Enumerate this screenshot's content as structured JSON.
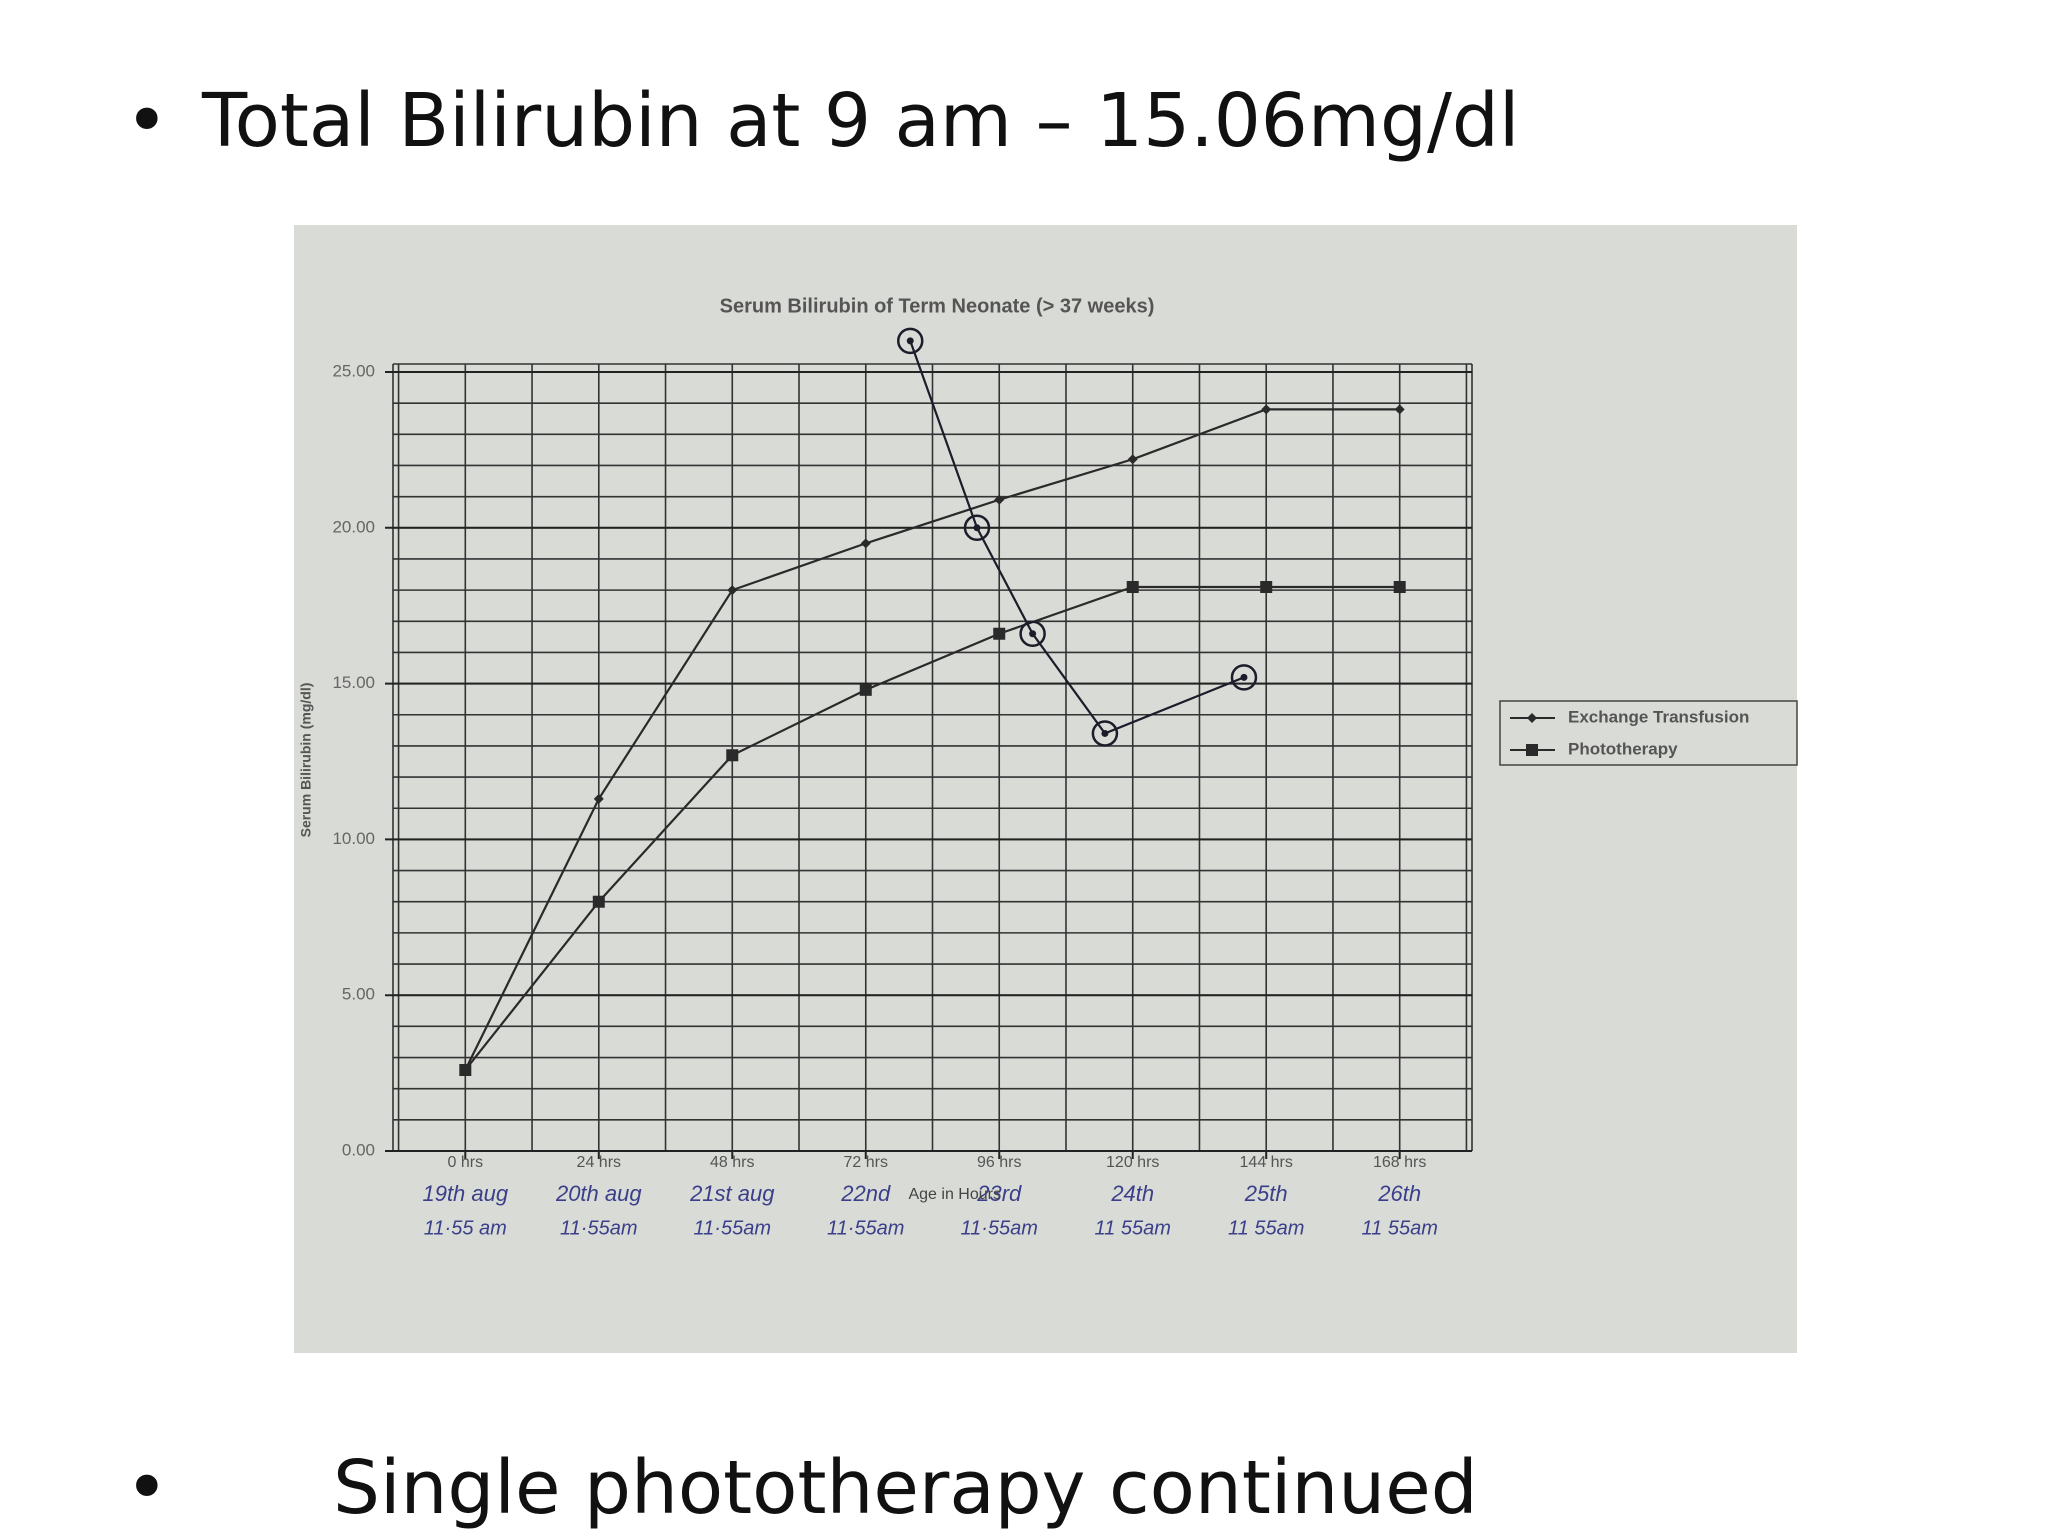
{
  "slide": {
    "bullets": [
      "Total Bilirubin at 9 am – 15.06mg/dl",
      "Single phototherapy continued"
    ]
  },
  "chart_data": {
    "type": "line",
    "title": "Serum Bilirubin of Term Neonate  (> 37 weeks)",
    "y_label": "Serum Bilirubin  (mg/dl)",
    "x_label": "Age in Hours",
    "x": [
      0,
      24,
      48,
      72,
      96,
      120,
      144,
      168
    ],
    "xlim": [
      -13,
      181
    ],
    "xticks": [
      {
        "value": 0,
        "label": "0 hrs"
      },
      {
        "value": 24,
        "label": "24 hrs"
      },
      {
        "value": 48,
        "label": "48 hrs"
      },
      {
        "value": 72,
        "label": "72 hrs"
      },
      {
        "value": 96,
        "label": "96 hrs"
      },
      {
        "value": 120,
        "label": "120 hrs"
      },
      {
        "value": 144,
        "label": "144 hrs"
      },
      {
        "value": 168,
        "label": "168 hrs"
      }
    ],
    "ylim": [
      0,
      25
    ],
    "yticks": [
      {
        "value": 0,
        "label": "0.00"
      },
      {
        "value": 5,
        "label": "5.00"
      },
      {
        "value": 10,
        "label": "10.00"
      },
      {
        "value": 15,
        "label": "15.00"
      },
      {
        "value": 20,
        "label": "20.00"
      },
      {
        "value": 25,
        "label": "25.00"
      }
    ],
    "grid": true,
    "x_minor_step": 12,
    "y_minor_step": 1,
    "legend": "right",
    "series": [
      {
        "name": "Exchange Transfusion",
        "color": "#2a2a2a",
        "marker": "diamond",
        "values": [
          2.6,
          11.3,
          18.0,
          19.5,
          20.9,
          22.2,
          23.8,
          23.8
        ]
      },
      {
        "name": "Phototherapy",
        "color": "#2a2a2a",
        "marker": "square",
        "values": [
          2.6,
          8.0,
          12.7,
          14.8,
          16.6,
          18.1,
          18.1,
          18.1
        ]
      },
      {
        "color": "#1c1c2a",
        "marker": "circle",
        "x": [
          80,
          92,
          102,
          115,
          140
        ],
        "values": [
          26.0,
          20.0,
          16.6,
          13.4,
          15.2
        ]
      }
    ],
    "x_annotations": [
      {
        "date": "19th aug",
        "time": "11·55 am"
      },
      {
        "date": "20th aug",
        "time": "11·55am"
      },
      {
        "date": "21st aug",
        "time": "11·55am"
      },
      {
        "date": "22nd",
        "time": "11·55am"
      },
      {
        "date": "23rd",
        "time": "11·55am"
      },
      {
        "date": "24th",
        "time": "11 55am"
      },
      {
        "date": "25th",
        "time": "11 55am"
      },
      {
        "date": "26th",
        "time": "11 55am"
      }
    ]
  }
}
